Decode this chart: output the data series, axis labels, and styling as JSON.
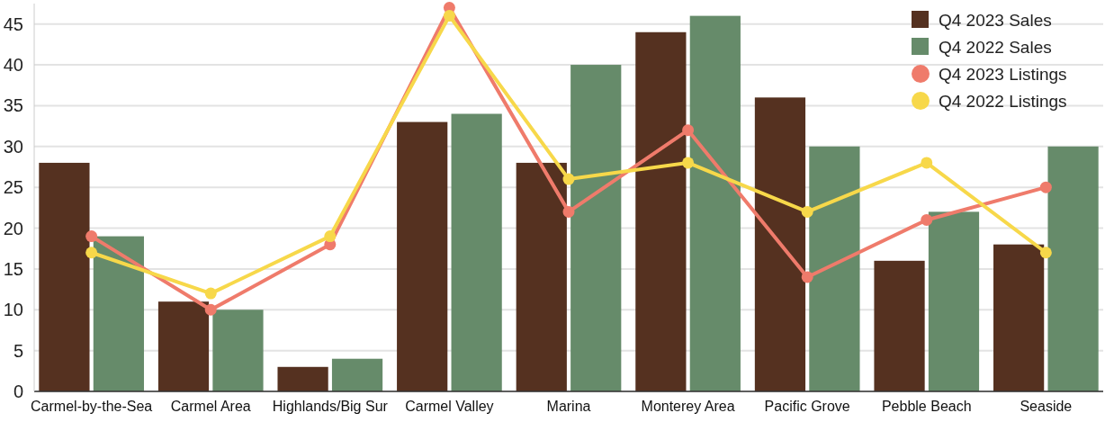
{
  "chart_data": {
    "type": "bar",
    "categories": [
      "Carmel-by-the-Sea",
      "Carmel Area",
      "Highlands/Big Sur",
      "Carmel Valley",
      "Marina",
      "Monterey Area",
      "Pacific Grove",
      "Pebble Beach",
      "Seaside"
    ],
    "series": [
      {
        "name": "Q4 2023 Sales",
        "color": "#553120",
        "values": [
          28,
          11,
          3,
          33,
          28,
          44,
          36,
          16,
          18
        ]
      },
      {
        "name": "Q4 2022 Sales",
        "color": "#668b6a",
        "values": [
          19,
          10,
          4,
          34,
          40,
          46,
          30,
          22,
          30
        ]
      },
      {
        "name": "Q4 2023 Listings",
        "type": "line",
        "color": "#ef7b6b",
        "values": [
          19,
          10,
          18,
          47,
          22,
          32,
          14,
          21,
          25
        ]
      },
      {
        "name": "Q4 2022 Listings",
        "type": "line",
        "color": "#f7d84a",
        "values": [
          17,
          12,
          19,
          46,
          26,
          28,
          22,
          28,
          17
        ]
      }
    ],
    "ylim": [
      0,
      47.5
    ],
    "yticks": [
      0,
      5,
      10,
      15,
      20,
      25,
      30,
      35,
      40,
      45
    ],
    "grid": "y",
    "legend": "top right",
    "marker": "circle"
  }
}
